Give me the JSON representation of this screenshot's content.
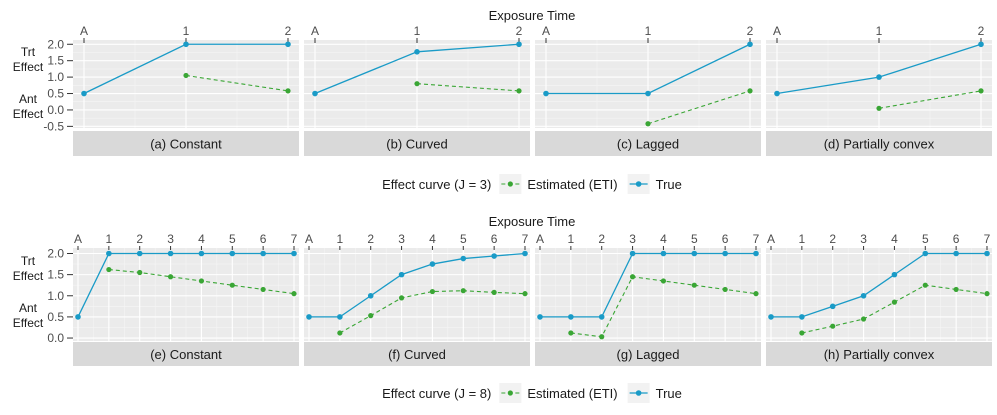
{
  "colors": {
    "estimated": "#3aa635",
    "true": "#1a9bc7",
    "panel": "#ebebeb",
    "strip": "#d9d9d9",
    "grid_major": "#ffffff"
  },
  "legend": {
    "estimated_label": "Estimated (ETI)",
    "true_label": "True"
  },
  "chart_data": [
    {
      "type": "line",
      "title": "Exposure Time",
      "ylabel_top": "Trt\nEffect",
      "ylabel_bottom": "Ant\nEffect",
      "x_ticks": [
        "A",
        "1",
        "2"
      ],
      "y_ticks": [
        2.0,
        1.5,
        1.0,
        0.5,
        0.0,
        -0.5
      ],
      "ylim": [
        -0.5,
        2.0
      ],
      "legend_title": "Effect curve (J = 3)",
      "panels": [
        {
          "label": "(a) Constant",
          "true": [
            0.5,
            2.0,
            2.0
          ],
          "estimated": [
            null,
            1.05,
            0.58
          ]
        },
        {
          "label": "(b) Curved",
          "true": [
            0.5,
            1.77,
            2.0
          ],
          "estimated": [
            null,
            0.8,
            0.58
          ]
        },
        {
          "label": "(c) Lagged",
          "true": [
            0.5,
            0.5,
            2.0
          ],
          "estimated": [
            null,
            -0.42,
            0.58
          ]
        },
        {
          "label": "(d) Partially convex",
          "true": [
            0.5,
            1.0,
            2.0
          ],
          "estimated": [
            null,
            0.05,
            0.58
          ]
        }
      ]
    },
    {
      "type": "line",
      "title": "Exposure Time",
      "ylabel_top": "Trt\nEffect",
      "ylabel_bottom": "Ant\nEffect",
      "x_ticks": [
        "A",
        "1",
        "2",
        "3",
        "4",
        "5",
        "6",
        "7"
      ],
      "y_ticks": [
        2.0,
        1.5,
        1.0,
        0.5,
        0.0
      ],
      "ylim": [
        -0.05,
        2.0
      ],
      "legend_title": "Effect curve (J = 8)",
      "panels": [
        {
          "label": "(e) Constant",
          "true": [
            0.5,
            2.0,
            2.0,
            2.0,
            2.0,
            2.0,
            2.0,
            2.0
          ],
          "estimated": [
            null,
            1.62,
            1.55,
            1.45,
            1.35,
            1.25,
            1.15,
            1.05
          ]
        },
        {
          "label": "(f) Curved",
          "true": [
            0.5,
            0.5,
            1.0,
            1.5,
            1.75,
            1.88,
            1.94,
            2.0
          ],
          "estimated": [
            null,
            0.12,
            0.53,
            0.95,
            1.1,
            1.12,
            1.08,
            1.05
          ]
        },
        {
          "label": "(g) Lagged",
          "true": [
            0.5,
            0.5,
            0.5,
            2.0,
            2.0,
            2.0,
            2.0,
            2.0
          ],
          "estimated": [
            null,
            0.12,
            0.03,
            1.45,
            1.35,
            1.25,
            1.15,
            1.05
          ]
        },
        {
          "label": "(h) Partially convex",
          "true": [
            0.5,
            0.5,
            0.75,
            1.0,
            1.5,
            2.0,
            2.0,
            2.0
          ],
          "estimated": [
            null,
            0.12,
            0.28,
            0.45,
            0.85,
            1.25,
            1.15,
            1.05
          ]
        }
      ]
    }
  ]
}
